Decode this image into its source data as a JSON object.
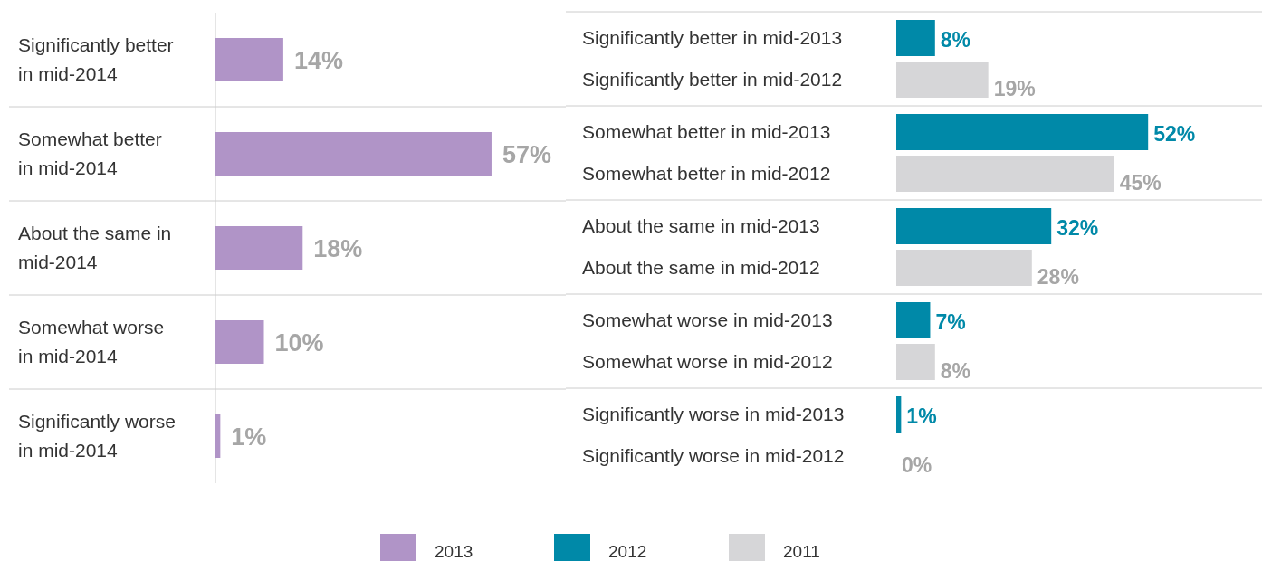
{
  "chart_data": [
    {
      "type": "bar",
      "orientation": "horizontal",
      "categories": [
        "Significantly better in mid-2014",
        "Somewhat better in mid-2014",
        "About the same in mid-2014",
        "Somewhat worse in mid-2014",
        "Significantly worse in mid-2014"
      ],
      "series": [
        {
          "name": "2013",
          "color": "#b094c7",
          "values": [
            14,
            57,
            18,
            10,
            1
          ],
          "value_labels": [
            "14%",
            "57%",
            "18%",
            "10%",
            "1%"
          ]
        }
      ],
      "legend": "bottom"
    },
    {
      "type": "bar",
      "orientation": "horizontal",
      "categories": [
        "Significantly better in mid-2013",
        "Significantly better in mid-2012",
        "Somewhat better in mid-2013",
        "Somewhat better in mid-2012",
        "About the same in mid-2013",
        "About the same in mid-2012",
        "Somewhat worse in mid-2013",
        "Somewhat worse in mid-2012",
        "Significantly worse in mid-2013",
        "Significantly worse in mid-2012"
      ],
      "series": [
        {
          "name": "2012",
          "color": "#0089a8",
          "values": [
            8,
            null,
            52,
            null,
            32,
            null,
            7,
            null,
            1,
            null
          ],
          "value_labels": [
            "8%",
            null,
            "52%",
            null,
            "32%",
            null,
            "7%",
            null,
            "1%",
            null
          ]
        },
        {
          "name": "2011",
          "color": "#d6d6d8",
          "values": [
            null,
            19,
            null,
            45,
            null,
            28,
            null,
            8,
            null,
            0
          ],
          "value_labels": [
            null,
            "19%",
            null,
            "45%",
            null,
            "28%",
            null,
            "8%",
            null,
            "0%"
          ]
        }
      ],
      "legend": "bottom"
    }
  ]
}
